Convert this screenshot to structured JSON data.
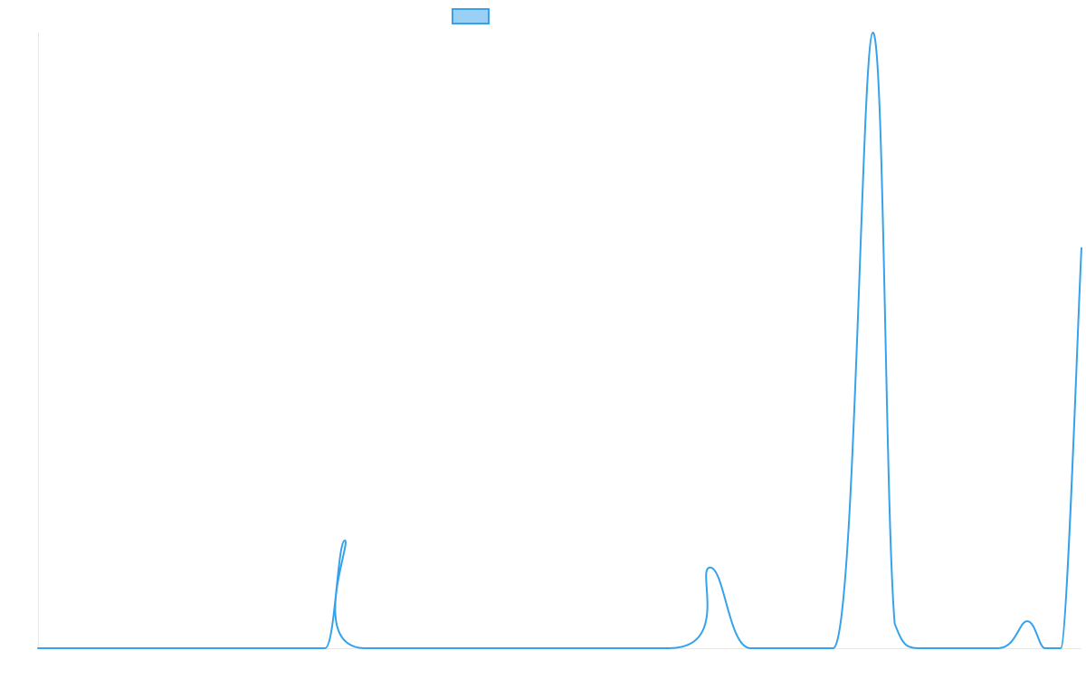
{
  "chart_data": {
    "type": "line",
    "title": "",
    "xlabel": "",
    "ylabel": "",
    "grid": false,
    "legend_placement": "top",
    "ylim": [
      0,
      100
    ],
    "series": [
      {
        "color": "#36a2eb",
        "fill_color": "#9ad0f5",
        "points": [
          [
            0,
            0
          ],
          [
            24,
            0
          ],
          [
            27.5,
            0
          ],
          [
            29.4,
            17.5
          ],
          [
            31.4,
            0
          ],
          [
            60.5,
            0
          ],
          [
            64.4,
            13.1
          ],
          [
            68.3,
            0
          ],
          [
            76.2,
            0
          ],
          [
            80,
            100
          ],
          [
            82.1,
            4
          ],
          [
            85,
            0
          ],
          [
            92,
            0
          ],
          [
            94.8,
            4.4
          ],
          [
            96.5,
            0
          ],
          [
            98,
            0
          ],
          [
            100,
            65
          ]
        ]
      }
    ]
  }
}
